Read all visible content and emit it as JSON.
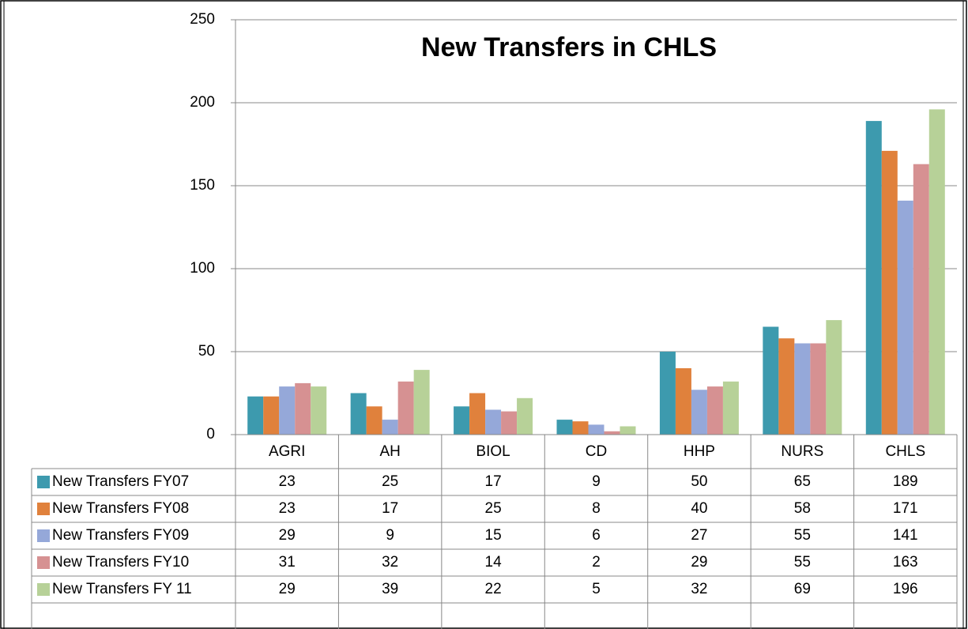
{
  "chart_data": {
    "type": "bar",
    "title": "New Transfers in CHLS",
    "categories": [
      "AGRI",
      "AH",
      "BIOL",
      "CD",
      "HHP",
      "NURS",
      "CHLS"
    ],
    "series": [
      {
        "name": "New Transfers FY07",
        "color": "#3d9aae",
        "values": [
          23,
          25,
          17,
          9,
          50,
          65,
          189
        ]
      },
      {
        "name": "New Transfers FY08",
        "color": "#e0813c",
        "values": [
          23,
          17,
          25,
          8,
          40,
          58,
          171
        ]
      },
      {
        "name": "New Transfers FY09",
        "color": "#95a8d9",
        "values": [
          29,
          9,
          15,
          6,
          27,
          55,
          141
        ]
      },
      {
        "name": "New Transfers FY10",
        "color": "#d69192",
        "values": [
          31,
          32,
          14,
          2,
          29,
          55,
          163
        ]
      },
      {
        "name": "New Transfers FY 11",
        "color": "#b7d198",
        "values": [
          29,
          39,
          22,
          5,
          32,
          69,
          196
        ]
      }
    ],
    "ylim": [
      0,
      250
    ],
    "yticks": [
      0,
      50,
      100,
      150,
      200,
      250
    ],
    "grid": true
  }
}
